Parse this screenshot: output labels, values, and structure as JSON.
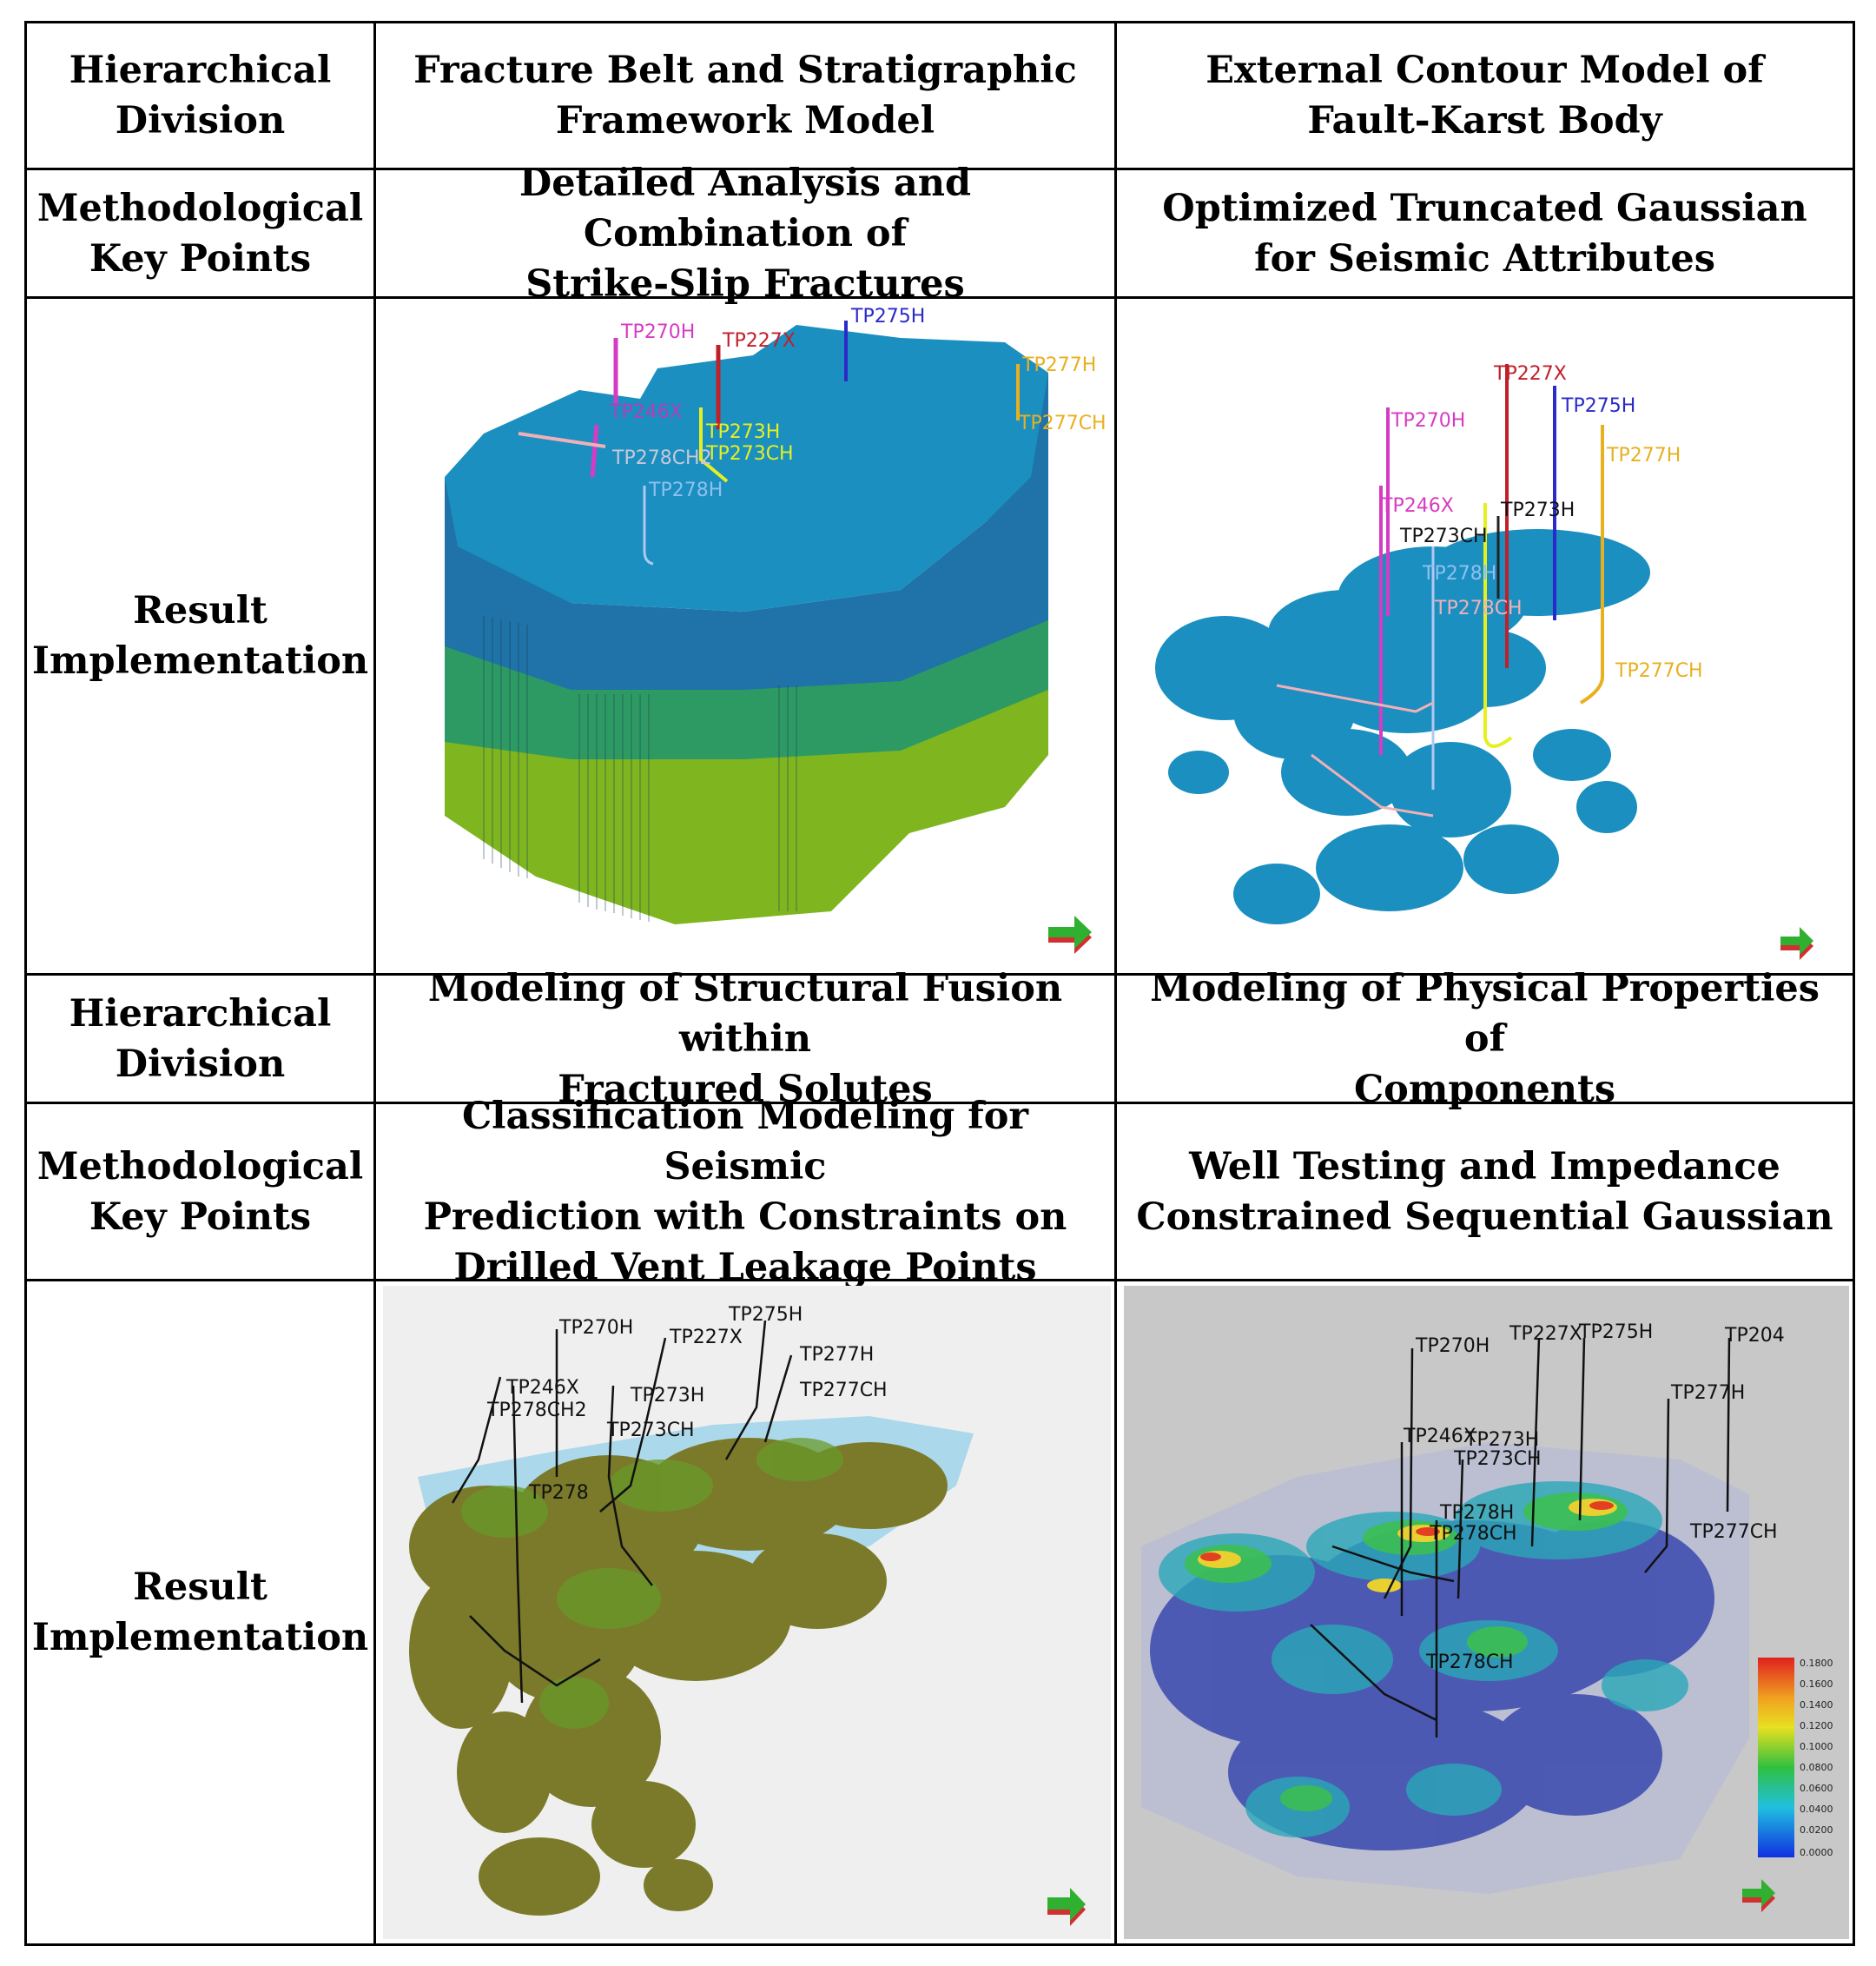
{
  "rows": {
    "r1": {
      "col1": "Hierarchical\nDivision",
      "col2": "Fracture Belt and Stratigraphic\nFramework Model",
      "col3": "External Contour Model of\nFault-Karst Body"
    },
    "r2": {
      "col1": "Methodological\nKey Points",
      "col2": "Detailed Analysis and Combination of\nStrike-Slip Fractures",
      "col3": "Optimized Truncated Gaussian\nfor Seismic Attributes"
    },
    "r3": {
      "col1": "Result\nImplementation"
    },
    "r4": {
      "col1": "Hierarchical\nDivision",
      "col2": "Modeling of Structural Fusion within\nFractured Solutes",
      "col3": "Modeling of Physical Properties of\nComponents"
    },
    "r5": {
      "col1": "Methodological\nKey Points",
      "col2": "Classification Modeling for Seismic\nPrediction with Constraints on\nDrilled Vent Leakage Points",
      "col3": "Well Testing and Impedance\nConstrained Sequential Gaussian"
    },
    "r6": {
      "col1": "Result\nImplementation"
    }
  },
  "wells": {
    "tp270h": "TP270H",
    "tp227x": "TP227X",
    "tp275h": "TP275H",
    "tp277h": "TP277H",
    "tp277ch": "TP277CH",
    "tp246x": "TP246X",
    "tp273h": "TP273H",
    "tp273ch": "TP273CH",
    "tp278ch2": "TP278CH2",
    "tp278h": "TP278H",
    "tp278": "TP278",
    "tp278ch": "TP278CH",
    "tp204": "TP204"
  },
  "colorbar_ticks": [
    "0.1800",
    "0.1600",
    "0.1400",
    "0.1200",
    "0.1000",
    "0.0800",
    "0.0600",
    "0.0400",
    "0.0200",
    "0.0000"
  ],
  "colors": {
    "border": "#000000",
    "model_blue": "#1a8fc0",
    "model_green": "#2e9a63",
    "model_yellow_green": "#7fb51f",
    "karst_olive": "#7a7a2a"
  }
}
